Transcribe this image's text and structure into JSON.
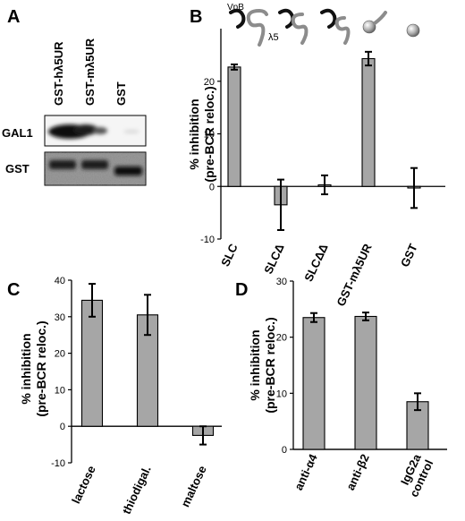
{
  "panel_labels": {
    "a": "A",
    "b": "B",
    "c": "C",
    "d": "D"
  },
  "blot": {
    "lanes": [
      "GST-hλ5UR",
      "GST-mλ5UR",
      "GST"
    ],
    "rows": [
      "GAL1",
      "GST"
    ]
  },
  "icons": {
    "vpb_label": "VpB",
    "lambda5_label": "λ5",
    "lane_icons": [
      "vpb-lambda5-complex-icon",
      "lambda5-only-icon",
      "truncated-lambda5-icon",
      "gst-bead-lambda5ur-icon",
      "gst-bead-icon"
    ]
  },
  "colors": {
    "bar": "#a6a6a6",
    "stroke": "#000000",
    "icon_black": "#111111",
    "icon_gray": "#8c8c8c"
  },
  "chart_data": [
    {
      "panel": "B",
      "type": "bar",
      "categories": [
        "SLC",
        "SLCΔ",
        "SLCΔΔ",
        "GST-mλ5UR",
        "GST"
      ],
      "values": [
        22.7,
        -3.5,
        0.3,
        24.3,
        -0.3
      ],
      "errors": [
        0.5,
        4.8,
        1.8,
        1.3,
        3.8
      ],
      "ylabel": "% inhibition (pre-BCR reloc.)",
      "ylabel_lines": [
        "% inhibition",
        "(pre-BCR reloc.)"
      ],
      "ylim": [
        -10,
        30
      ],
      "yticks": [
        "-10",
        "0",
        "10",
        "20"
      ]
    },
    {
      "panel": "C",
      "type": "bar",
      "categories": [
        "lactose",
        "thiodigal.",
        "maltose"
      ],
      "values": [
        34.5,
        30.5,
        -2.5
      ],
      "errors": [
        4.5,
        5.5,
        2.5
      ],
      "ylabel": "% inhibition (pre-BCR reloc.)",
      "ylabel_lines": [
        "% inhibition",
        "(pre-BCR reloc.)"
      ],
      "ylim": [
        -10,
        40
      ],
      "yticks": [
        "-10",
        "0",
        "10",
        "20",
        "30",
        "40"
      ]
    },
    {
      "panel": "D",
      "type": "bar",
      "categories": [
        "anti-α4",
        "anti-β2",
        "IgG2a control"
      ],
      "category_lines": [
        [
          "anti-α4"
        ],
        [
          "anti-β2"
        ],
        [
          "IgG2a",
          "control"
        ]
      ],
      "values": [
        23.5,
        23.7,
        8.5
      ],
      "errors": [
        0.8,
        0.7,
        1.5
      ],
      "ylabel": "% inhibition (pre-BCR reloc.)",
      "ylabel_lines": [
        "% inhibition",
        "(pre-BCR reloc.)"
      ],
      "ylim": [
        0,
        30
      ],
      "yticks": [
        "0",
        "10",
        "20",
        "30"
      ]
    }
  ]
}
